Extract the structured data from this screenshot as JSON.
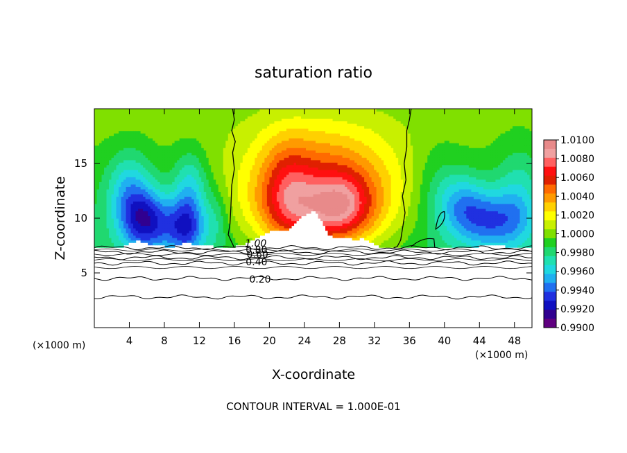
{
  "chart_data": {
    "type": "heatmap",
    "title": "saturation ratio",
    "xlabel": "X-coordinate",
    "ylabel": "Z-coordinate",
    "x_unit_left": "(×1000 m)",
    "x_unit_right": "(×1000 m)",
    "footer": "CONTOUR INTERVAL = 1.000E-01",
    "xlim": [
      0,
      50
    ],
    "ylim": [
      0,
      20
    ],
    "x_ticks": [
      4,
      8,
      12,
      16,
      20,
      24,
      28,
      32,
      36,
      40,
      44,
      48
    ],
    "y_ticks": [
      5,
      10,
      15
    ],
    "grid": false,
    "colorbar": {
      "min": 0.99,
      "max": 1.01,
      "labels": [
        "1.0100",
        "1.0080",
        "1.0060",
        "1.0040",
        "1.0020",
        "1.0000",
        "0.9980",
        "0.9960",
        "0.9940",
        "0.9920",
        "0.9900"
      ],
      "colors": [
        "#e88a8a",
        "#f0a0a0",
        "#ff6060",
        "#ff1010",
        "#e02000",
        "#ff6a00",
        "#ff9a00",
        "#ffd000",
        "#ffff00",
        "#c8f000",
        "#80e000",
        "#20d020",
        "#20d870",
        "#20e0b0",
        "#20d8e0",
        "#20b0f0",
        "#2070f0",
        "#2030e0",
        "#1010c0",
        "#300090",
        "#600080"
      ]
    },
    "contour_labels": [
      "1.00",
      "0.80",
      "0.60",
      "0.40",
      "0.20"
    ],
    "contour_levels": [
      1.0,
      0.8,
      0.6,
      0.4,
      0.2
    ],
    "contour_level_heights": [
      7.3,
      6.9,
      6.4,
      5.9,
      4.5,
      2.8
    ],
    "saturated_regions": [
      {
        "x_range": [
          1,
          2.5
        ],
        "level": 1.0
      },
      {
        "x_range": [
          15.7,
          36.1
        ],
        "level": 1.0
      }
    ]
  }
}
